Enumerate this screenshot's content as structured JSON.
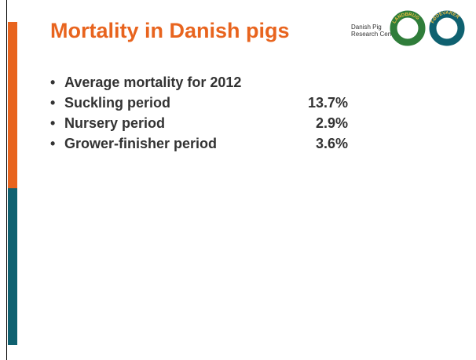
{
  "header": {
    "title": "Mortality in Danish pigs",
    "organization": [
      "Danish Pig",
      "Research Centre"
    ],
    "logo_texts": [
      "LANDBRUG",
      "FØDEVARER"
    ]
  },
  "bullets": [
    {
      "label": "Average mortality for 2012"
    },
    {
      "label": "Suckling period",
      "value": "13.7%"
    },
    {
      "label": "Nursery period",
      "value": "2.9%"
    },
    {
      "label": "Grower-finisher period",
      "value": "3.6%"
    }
  ]
}
